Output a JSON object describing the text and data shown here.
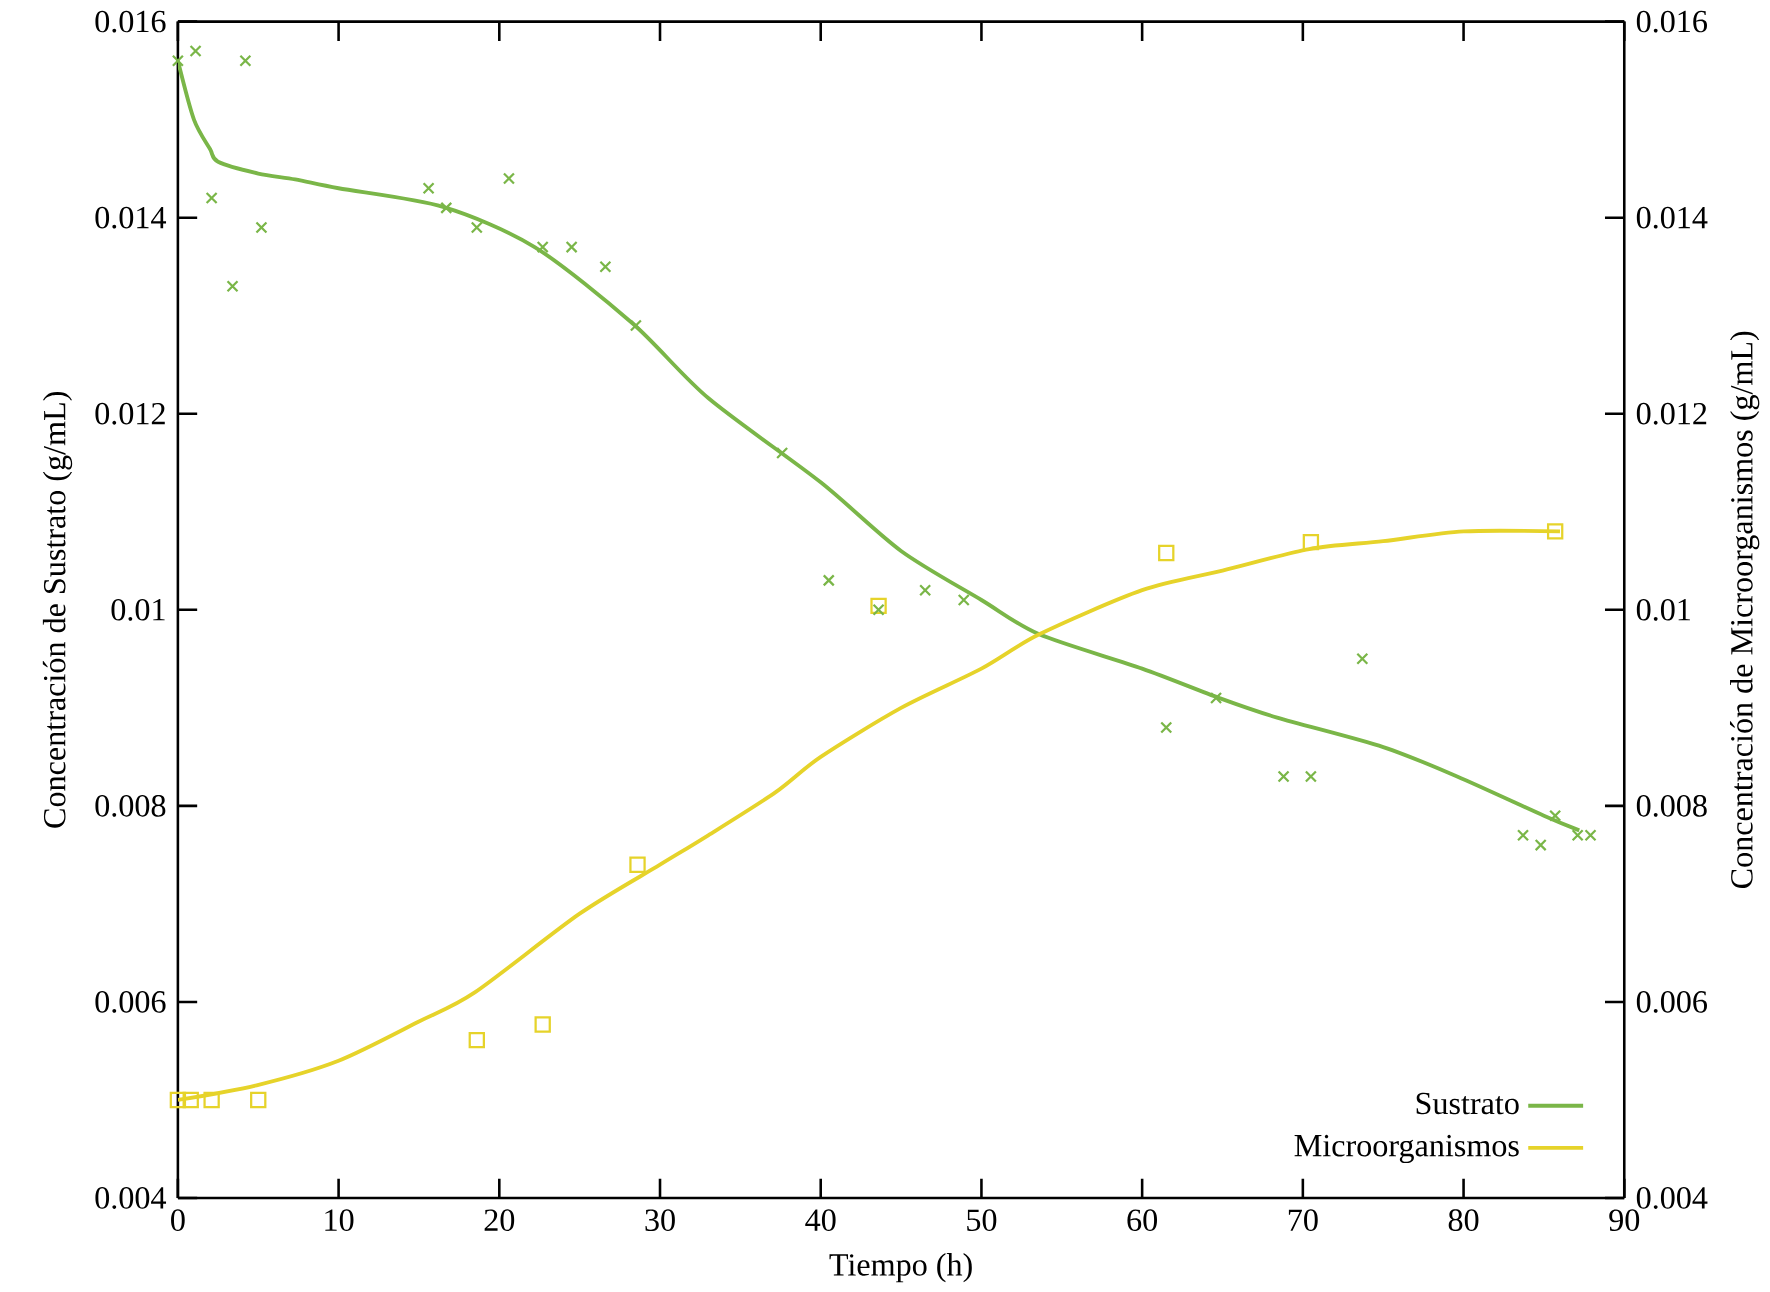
{
  "chart_data": {
    "type": "line",
    "xlabel": "Tiempo (h)",
    "ylabel": "Concentración de Sustrato (g/mL)",
    "y2label": "Concentración de Microorganismos (g/mL)",
    "xlim": [
      0,
      90
    ],
    "xticks": [
      0,
      10,
      20,
      30,
      40,
      50,
      60,
      70,
      80,
      90
    ],
    "ylim": [
      0.004,
      0.016
    ],
    "yticks": [
      0.004,
      0.006,
      0.008,
      0.01,
      0.012,
      0.014,
      0.016
    ],
    "y2lim": [
      0.004,
      0.016
    ],
    "y2ticks": [
      0.004,
      0.006,
      0.008,
      0.01,
      0.012,
      0.014,
      0.016
    ],
    "grid": false,
    "legend": "bottom right",
    "series": [
      {
        "name": "Sustrato",
        "color": "#7ab648",
        "marker": "none",
        "x": [
          0,
          1,
          2,
          2.5,
          5,
          7.3,
          10,
          16.5,
          22.2,
          28.3,
          33,
          40,
          45,
          50,
          53.6,
          60,
          64.8,
          68.4,
          75,
          79.6,
          85,
          87.2
        ],
        "values": [
          0.0156,
          0.015,
          0.0147,
          0.01457,
          0.01445,
          0.01439,
          0.0143,
          0.01411,
          0.0137,
          0.01292,
          0.01216,
          0.0113,
          0.0106,
          0.0101,
          0.00975,
          0.0094,
          0.0091,
          0.0089,
          0.0086,
          0.0083,
          0.0079,
          0.00775
        ]
      },
      {
        "name": "Microorganismos",
        "color": "#e6d32a",
        "marker": "none",
        "x": [
          0,
          4.9,
          10,
          15,
          18.5,
          25,
          30,
          33,
          37.2,
          40,
          45,
          50,
          53.6,
          60,
          65,
          70.4,
          75,
          80,
          86
        ],
        "values": [
          0.005,
          0.00515,
          0.0054,
          0.0058,
          0.0061,
          0.0069,
          0.0074,
          0.0077,
          0.00814,
          0.0085,
          0.009,
          0.0094,
          0.00975,
          0.0102,
          0.0104,
          0.01062,
          0.0107,
          0.0108,
          0.0108
        ]
      },
      {
        "type": "scatter",
        "color": "#e6d32a",
        "marker": "square",
        "x": [
          0,
          0.8,
          2.1,
          5.0,
          18.6,
          22.7,
          28.6,
          43.6,
          61.5,
          70.5,
          85.7
        ],
        "values": [
          0.005,
          0.005,
          0.005,
          0.005,
          0.00561,
          0.00577,
          0.0074,
          0.01004,
          0.01058,
          0.01069,
          0.0108
        ]
      },
      {
        "type": "scatter",
        "color": "#7ab648",
        "marker": "cross",
        "x": [
          0,
          1.1,
          2.1,
          3.4,
          4.2,
          5.2,
          15.6,
          16.7,
          18.6,
          20.6,
          22.7,
          24.5,
          26.6,
          28.5,
          37.6,
          40.5,
          43.6,
          46.5,
          48.9,
          61.5,
          64.6,
          68.8,
          70.5,
          73.7,
          83.7,
          84.8,
          85.7,
          87.1,
          87.9
        ],
        "values": [
          0.0156,
          0.0157,
          0.0142,
          0.0133,
          0.0156,
          0.0139,
          0.0143,
          0.0141,
          0.0139,
          0.0144,
          0.0137,
          0.0137,
          0.0135,
          0.0129,
          0.0116,
          0.0103,
          0.01,
          0.0102,
          0.0101,
          0.0088,
          0.0091,
          0.0083,
          0.0083,
          0.0095,
          0.0077,
          0.0076,
          0.0079,
          0.0077,
          0.0077
        ]
      }
    ]
  }
}
